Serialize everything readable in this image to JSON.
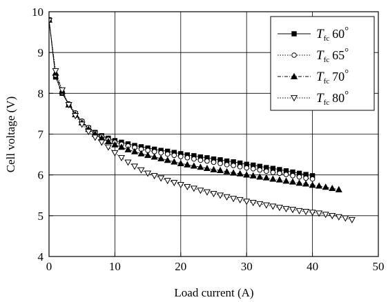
{
  "chart_data": {
    "type": "line",
    "xlabel": "Load current (A)",
    "ylabel": "Cell voltage (V)",
    "xlim": [
      0,
      50
    ],
    "ylim": [
      4,
      10
    ],
    "xticks": [
      0,
      10,
      20,
      30,
      40,
      50
    ],
    "yticks": [
      4,
      5,
      6,
      7,
      8,
      9,
      10
    ],
    "grid": true,
    "legend_position": "top-right",
    "series": [
      {
        "name": "60",
        "legend_main": "T",
        "legend_sub": "fc",
        "legend_value": "60",
        "legend_degree": "°",
        "marker": "filled-square",
        "line_style": "solid",
        "color": "#000000",
        "x": [
          0,
          1,
          2,
          3,
          4,
          5,
          6,
          7,
          8,
          9,
          10,
          11,
          12,
          13,
          14,
          15,
          16,
          17,
          18,
          19,
          20,
          21,
          22,
          23,
          24,
          25,
          26,
          27,
          28,
          29,
          30,
          31,
          32,
          33,
          34,
          35,
          36,
          37,
          38,
          39,
          40
        ],
        "y": [
          9.8,
          8.4,
          8.0,
          7.72,
          7.5,
          7.3,
          7.15,
          7.04,
          6.96,
          6.9,
          6.84,
          6.8,
          6.76,
          6.72,
          6.69,
          6.66,
          6.63,
          6.6,
          6.58,
          6.55,
          6.52,
          6.49,
          6.47,
          6.44,
          6.42,
          6.39,
          6.37,
          6.34,
          6.32,
          6.29,
          6.26,
          6.24,
          6.21,
          6.18,
          6.16,
          6.13,
          6.1,
          6.07,
          6.04,
          6.01,
          5.98
        ]
      },
      {
        "name": "65",
        "legend_main": "T",
        "legend_sub": "fc",
        "legend_value": "65",
        "legend_degree": "°",
        "marker": "open-circle",
        "line_style": "dotted",
        "color": "#000000",
        "x": [
          0,
          1,
          2,
          3,
          4,
          5,
          6,
          7,
          8,
          9,
          10,
          11,
          12,
          13,
          14,
          15,
          16,
          17,
          18,
          19,
          20,
          21,
          22,
          23,
          24,
          25,
          26,
          27,
          28,
          29,
          30,
          31,
          32,
          33,
          34,
          35,
          36,
          37,
          38,
          39,
          40
        ],
        "y": [
          9.8,
          8.45,
          8.02,
          7.74,
          7.52,
          7.32,
          7.16,
          7.03,
          6.94,
          6.87,
          6.8,
          6.75,
          6.71,
          6.67,
          6.63,
          6.6,
          6.57,
          6.54,
          6.51,
          6.48,
          6.45,
          6.42,
          6.39,
          6.36,
          6.34,
          6.31,
          6.28,
          6.25,
          6.23,
          6.2,
          6.17,
          6.15,
          6.12,
          6.09,
          6.06,
          6.04,
          6.01,
          5.98,
          5.95,
          5.92,
          5.9
        ]
      },
      {
        "name": "70",
        "legend_main": "T",
        "legend_sub": "fc",
        "legend_value": "70",
        "legend_degree": "°",
        "marker": "filled-triangle-up",
        "line_style": "dash-dot",
        "color": "#000000",
        "x": [
          0,
          1,
          2,
          3,
          4,
          5,
          6,
          7,
          8,
          9,
          10,
          11,
          12,
          13,
          14,
          15,
          16,
          17,
          18,
          19,
          20,
          21,
          22,
          23,
          24,
          25,
          26,
          27,
          28,
          29,
          30,
          31,
          32,
          33,
          34,
          35,
          36,
          37,
          38,
          39,
          40,
          41,
          42,
          43,
          44
        ],
        "y": [
          9.8,
          8.5,
          8.05,
          7.72,
          7.48,
          7.28,
          7.12,
          7.0,
          6.9,
          6.82,
          6.74,
          6.68,
          6.62,
          6.57,
          6.52,
          6.48,
          6.44,
          6.4,
          6.36,
          6.32,
          6.28,
          6.25,
          6.22,
          6.19,
          6.16,
          6.13,
          6.11,
          6.08,
          6.05,
          6.03,
          6.0,
          5.98,
          5.95,
          5.93,
          5.9,
          5.88,
          5.85,
          5.83,
          5.8,
          5.78,
          5.75,
          5.73,
          5.7,
          5.67,
          5.64
        ]
      },
      {
        "name": "80",
        "legend_main": "T",
        "legend_sub": "fc",
        "legend_value": "80",
        "legend_degree": "°",
        "marker": "open-triangle-down",
        "line_style": "dotted",
        "color": "#000000",
        "x": [
          0,
          1,
          2,
          3,
          4,
          5,
          6,
          7,
          8,
          9,
          10,
          11,
          12,
          13,
          14,
          15,
          16,
          17,
          18,
          19,
          20,
          21,
          22,
          23,
          24,
          25,
          26,
          27,
          28,
          29,
          30,
          31,
          32,
          33,
          34,
          35,
          36,
          37,
          38,
          39,
          40,
          41,
          42,
          43,
          44,
          45,
          46
        ],
        "y": [
          9.78,
          8.55,
          8.08,
          7.72,
          7.45,
          7.24,
          7.06,
          6.92,
          6.8,
          6.68,
          6.54,
          6.42,
          6.31,
          6.21,
          6.12,
          6.04,
          5.98,
          5.92,
          5.86,
          5.81,
          5.76,
          5.71,
          5.67,
          5.62,
          5.58,
          5.54,
          5.5,
          5.46,
          5.42,
          5.39,
          5.35,
          5.32,
          5.29,
          5.26,
          5.23,
          5.2,
          5.17,
          5.15,
          5.12,
          5.1,
          5.08,
          5.06,
          5.03,
          5.0,
          4.97,
          4.94,
          4.9
        ]
      }
    ]
  }
}
